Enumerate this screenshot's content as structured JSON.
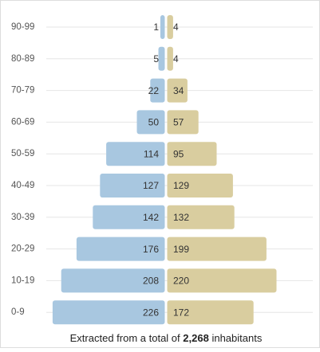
{
  "chart_data": {
    "type": "pyramid",
    "categories": [
      "90-99",
      "80-89",
      "70-79",
      "60-69",
      "50-59",
      "40-49",
      "30-39",
      "20-29",
      "10-19",
      "0-9"
    ],
    "series": [
      {
        "color": "#a8c7e0",
        "values": [
          1,
          5,
          22,
          50,
          114,
          127,
          142,
          176,
          208,
          226
        ]
      },
      {
        "color": "#d9cd9f",
        "values": [
          4,
          4,
          34,
          57,
          95,
          129,
          132,
          199,
          220,
          172
        ]
      }
    ],
    "footer": {
      "prefix": "Extracted from a total of",
      "total": "2,268",
      "suffix": "inhabitants"
    }
  }
}
